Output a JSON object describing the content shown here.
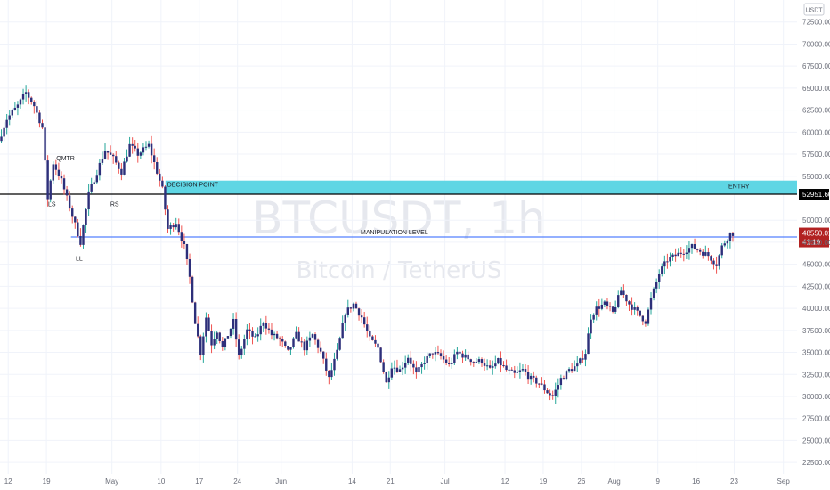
{
  "chart_data": {
    "type": "candlestick",
    "symbol": "BTCUSDT, 1h",
    "symbol_desc": "Bitcoin / TetherUS",
    "currency_badge": "USDT",
    "y_ticks": [
      22500,
      25000,
      27500,
      30000,
      32500,
      35000,
      37500,
      40000,
      42500,
      45000,
      47500,
      50000,
      55000,
      57500,
      60000,
      62500,
      65000,
      67500,
      70000,
      72500
    ],
    "y_tick_labels": [
      "22500.00",
      "25000.00",
      "27500.00",
      "30000.00",
      "32500.00",
      "35000.00",
      "37500.00",
      "40000.00",
      "42500.00",
      "45000.00",
      "47500.00",
      "50000.00",
      "55000.00",
      "57500.00",
      "60000.00",
      "62500.00",
      "65000.00",
      "67500.00",
      "70000.00",
      "72500.00"
    ],
    "ylim": [
      21200,
      75000
    ],
    "x_ticks": [
      {
        "label": "12",
        "day": 0
      },
      {
        "label": "19",
        "day": 7
      },
      {
        "label": "May",
        "day": 19
      },
      {
        "label": "10",
        "day": 28
      },
      {
        "label": "17",
        "day": 35
      },
      {
        "label": "24",
        "day": 42
      },
      {
        "label": "Jun",
        "day": 50
      },
      {
        "label": "14",
        "day": 63
      },
      {
        "label": "21",
        "day": 70
      },
      {
        "label": "Jul",
        "day": 80
      },
      {
        "label": "12",
        "day": 91
      },
      {
        "label": "19",
        "day": 98
      },
      {
        "label": "26",
        "day": 105
      },
      {
        "label": "Aug",
        "day": 111
      },
      {
        "label": "9",
        "day": 119
      },
      {
        "label": "16",
        "day": 126
      },
      {
        "label": "23",
        "day": 133
      },
      {
        "label": "Sep",
        "day": 142
      }
    ],
    "xlim_days": [
      -1.5,
      144.5
    ],
    "price_path": [
      [
        -1.5,
        59000
      ],
      [
        0,
        61500
      ],
      [
        2,
        63000
      ],
      [
        3.5,
        64500
      ],
      [
        5,
        63000
      ],
      [
        6.5,
        60500
      ],
      [
        7.5,
        52500
      ],
      [
        8.5,
        56500
      ],
      [
        10,
        54500
      ],
      [
        11.5,
        51500
      ],
      [
        12.5,
        49500
      ],
      [
        13.5,
        47500
      ],
      [
        15,
        53000
      ],
      [
        16.5,
        55500
      ],
      [
        18,
        58000
      ],
      [
        19.5,
        57000
      ],
      [
        21,
        55500
      ],
      [
        22.5,
        58500
      ],
      [
        24,
        57500
      ],
      [
        26,
        58500
      ],
      [
        27.5,
        55500
      ],
      [
        28.5,
        53500
      ],
      [
        29.5,
        49000
      ],
      [
        31,
        49800
      ],
      [
        32.5,
        47000
      ],
      [
        33.5,
        43500
      ],
      [
        34.5,
        38500
      ],
      [
        35.5,
        35000
      ],
      [
        36.5,
        39000
      ],
      [
        37.5,
        36000
      ],
      [
        38.5,
        37500
      ],
      [
        39.5,
        35500
      ],
      [
        40.5,
        37000
      ],
      [
        41.5,
        38500
      ],
      [
        42.5,
        34500
      ],
      [
        44,
        37500
      ],
      [
        45.5,
        36500
      ],
      [
        47,
        38500
      ],
      [
        48.5,
        37000
      ],
      [
        50,
        36500
      ],
      [
        51.5,
        35000
      ],
      [
        53,
        37000
      ],
      [
        54.5,
        35500
      ],
      [
        56,
        37000
      ],
      [
        57.5,
        35000
      ],
      [
        59,
        32000
      ],
      [
        60.5,
        35000
      ],
      [
        62,
        39500
      ],
      [
        63.5,
        40500
      ],
      [
        65,
        39000
      ],
      [
        66.5,
        36500
      ],
      [
        68,
        35500
      ],
      [
        69.5,
        31500
      ],
      [
        70.5,
        33500
      ],
      [
        72,
        33000
      ],
      [
        73.5,
        34500
      ],
      [
        75,
        32500
      ],
      [
        76.5,
        34000
      ],
      [
        78,
        35000
      ],
      [
        79.5,
        34500
      ],
      [
        81,
        33500
      ],
      [
        82.5,
        35000
      ],
      [
        84,
        34500
      ],
      [
        85.5,
        34000
      ],
      [
        87,
        34000
      ],
      [
        88.5,
        33000
      ],
      [
        90,
        34000
      ],
      [
        91.5,
        33000
      ],
      [
        93,
        32500
      ],
      [
        94.5,
        33000
      ],
      [
        96,
        32000
      ],
      [
        97.5,
        31500
      ],
      [
        99,
        30500
      ],
      [
        100,
        30000
      ],
      [
        101.5,
        32000
      ],
      [
        103,
        33000
      ],
      [
        104.5,
        33500
      ],
      [
        106,
        35000
      ],
      [
        107,
        39000
      ],
      [
        108,
        40000
      ],
      [
        109.5,
        40500
      ],
      [
        111,
        39500
      ],
      [
        112.5,
        42000
      ],
      [
        114,
        40500
      ],
      [
        115.5,
        39500
      ],
      [
        117,
        38500
      ],
      [
        118,
        41000
      ],
      [
        119.5,
        44000
      ],
      [
        121,
        45500
      ],
      [
        122.5,
        46000
      ],
      [
        124,
        46500
      ],
      [
        125.5,
        47000
      ],
      [
        127,
        46500
      ],
      [
        128.5,
        46000
      ],
      [
        130,
        45000
      ],
      [
        131,
        47000
      ],
      [
        132.5,
        48500
      ]
    ],
    "candle_hours": 12,
    "levels": [
      {
        "name": "decision-point-zone",
        "y_low": 52951.6,
        "y_high": 54500,
        "color": "#5fd6e4",
        "label": "DECISION POINT",
        "label2": "ENTRY"
      },
      {
        "name": "black-line",
        "y": 52951.6,
        "color": "#000000",
        "label": "52951.60"
      },
      {
        "name": "manipulation-level",
        "y": 48100,
        "color": "#2962ff",
        "label": "MANIPULATION LEVEL"
      }
    ],
    "current_price": {
      "value": 48550.01,
      "label": "48550.01",
      "countdown": "41:19",
      "color": "#b22222"
    },
    "annotations": [
      {
        "text": "QMTR",
        "day": 10.5,
        "y": 56800
      },
      {
        "text": "LS",
        "day": 8,
        "y": 51600
      },
      {
        "text": "RS",
        "day": 19.5,
        "y": 51600
      },
      {
        "text": "LL",
        "day": 13,
        "y": 45400
      }
    ],
    "colors": {
      "up": "#26a69a",
      "down": "#ef5350",
      "body": "#2d2f7a",
      "grid": "#f0f3fa",
      "axis_text": "#6a6d78"
    }
  }
}
